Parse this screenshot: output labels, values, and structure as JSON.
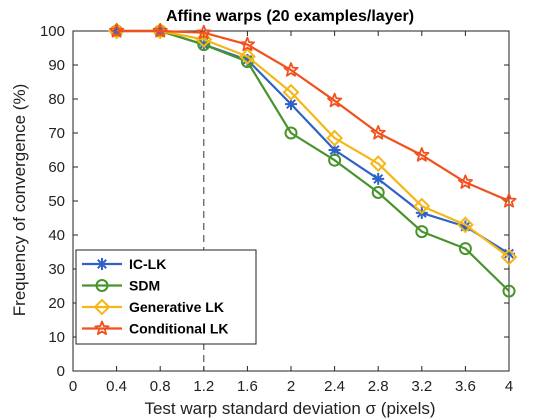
{
  "chart_data": {
    "type": "line",
    "title": "Affine warps (20 examples/layer)",
    "xlabel": "Test warp standard deviation σ (pixels)",
    "ylabel": "Frequency of convergence (%)",
    "xlim": [
      0,
      4
    ],
    "ylim": [
      0,
      100
    ],
    "x_ticks": [
      "0",
      "0.4",
      "0.8",
      "1.2",
      "1.6",
      "2",
      "2.4",
      "2.8",
      "3.2",
      "3.6",
      "4"
    ],
    "y_ticks": [
      "0",
      "10",
      "20",
      "30",
      "40",
      "50",
      "60",
      "70",
      "80",
      "90",
      "100"
    ],
    "grid": false,
    "legend_position": "bottom-left",
    "reference_line": {
      "x": 1.2,
      "style": "dashed"
    },
    "x": [
      0.4,
      0.8,
      1.2,
      1.6,
      2.0,
      2.4,
      2.8,
      3.2,
      3.6,
      4.0
    ],
    "series": [
      {
        "name": "IC-LK",
        "marker": "asterisk",
        "color": "#2f62c8",
        "values": [
          100,
          100,
          96,
          91.5,
          78.5,
          65,
          56.5,
          46.5,
          42.5,
          34.5
        ]
      },
      {
        "name": "SDM",
        "marker": "circle",
        "color": "#48942c",
        "values": [
          100,
          100,
          96,
          91,
          70,
          62,
          52.5,
          41,
          36,
          23.5
        ]
      },
      {
        "name": "Generative LK",
        "marker": "diamond",
        "color": "#f6b716",
        "values": [
          100,
          100,
          97.5,
          92.5,
          82,
          68.5,
          61,
          48.5,
          43,
          33.5
        ]
      },
      {
        "name": "Conditional LK",
        "marker": "star",
        "color": "#f2501c",
        "values": [
          100,
          100,
          99.5,
          96,
          88.5,
          79.5,
          70,
          63.5,
          55.5,
          50
        ]
      }
    ]
  }
}
